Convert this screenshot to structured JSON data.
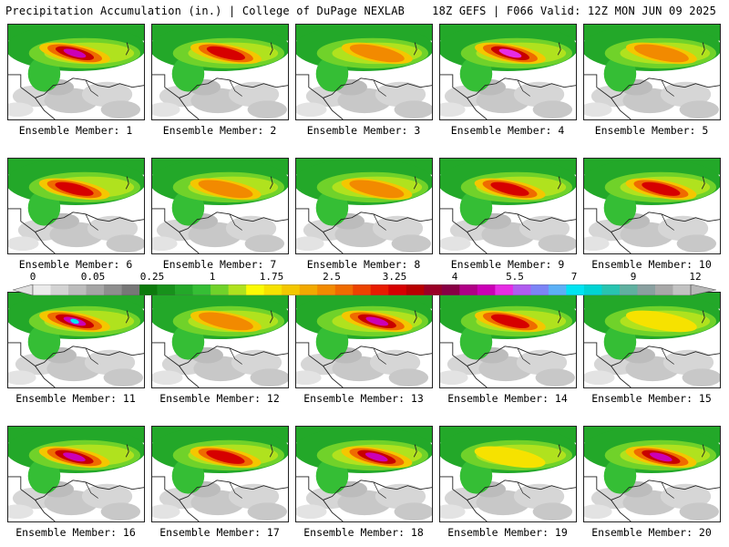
{
  "header": {
    "left": "Precipitation Accumulation (in.) | College of DuPage NEXLAB",
    "right": "18Z GEFS | F066 Valid: 12Z MON JUN 09 2025"
  },
  "members": [
    {
      "label": "Ensemble Member: 1",
      "peak": "purple"
    },
    {
      "label": "Ensemble Member: 2",
      "peak": "red"
    },
    {
      "label": "Ensemble Member: 3",
      "peak": "orange"
    },
    {
      "label": "Ensemble Member: 4",
      "peak": "magenta"
    },
    {
      "label": "Ensemble Member: 5",
      "peak": "orange"
    },
    {
      "label": "Ensemble Member: 6",
      "peak": "red"
    },
    {
      "label": "Ensemble Member: 7",
      "peak": "orange"
    },
    {
      "label": "Ensemble Member: 8",
      "peak": "orange"
    },
    {
      "label": "Ensemble Member: 9",
      "peak": "red"
    },
    {
      "label": "Ensemble Member: 10",
      "peak": "red"
    },
    {
      "label": "Ensemble Member: 11",
      "peak": "cyan"
    },
    {
      "label": "Ensemble Member: 12",
      "peak": "orange"
    },
    {
      "label": "Ensemble Member: 13",
      "peak": "purple"
    },
    {
      "label": "Ensemble Member: 14",
      "peak": "red"
    },
    {
      "label": "Ensemble Member: 15",
      "peak": "yellow"
    },
    {
      "label": "Ensemble Member: 16",
      "peak": "purple"
    },
    {
      "label": "Ensemble Member: 17",
      "peak": "red"
    },
    {
      "label": "Ensemble Member: 18",
      "peak": "purple"
    },
    {
      "label": "Ensemble Member: 19",
      "peak": "yellow"
    },
    {
      "label": "Ensemble Member: 20",
      "peak": "purple"
    }
  ],
  "colorbar": {
    "labels": [
      "0",
      "0.05",
      "0.25",
      "1",
      "1.75",
      "2.5",
      "3.25",
      "4",
      "5.5",
      "7",
      "9",
      "12"
    ],
    "colors": [
      "#ebebeb",
      "#d3d3d3",
      "#bcbcbc",
      "#a5a5a5",
      "#8e8e8e",
      "#777777",
      "#0c7a0c",
      "#17911b",
      "#23a829",
      "#35be35",
      "#70d22a",
      "#b0e21e",
      "#fbfb04",
      "#f6e200",
      "#f4c700",
      "#f2a900",
      "#f28a00",
      "#ef6b00",
      "#ec4300",
      "#e81c00",
      "#d60000",
      "#b80000",
      "#9a0026",
      "#880044",
      "#b00086",
      "#cb00b6",
      "#e62ce4",
      "#b05cf0",
      "#7c84f6",
      "#5cb0f6",
      "#00e4f2",
      "#00d4d4",
      "#28c4b0",
      "#60b0a0",
      "#8aa0a0",
      "#a8a8a8",
      "#c2c2c2"
    ]
  }
}
